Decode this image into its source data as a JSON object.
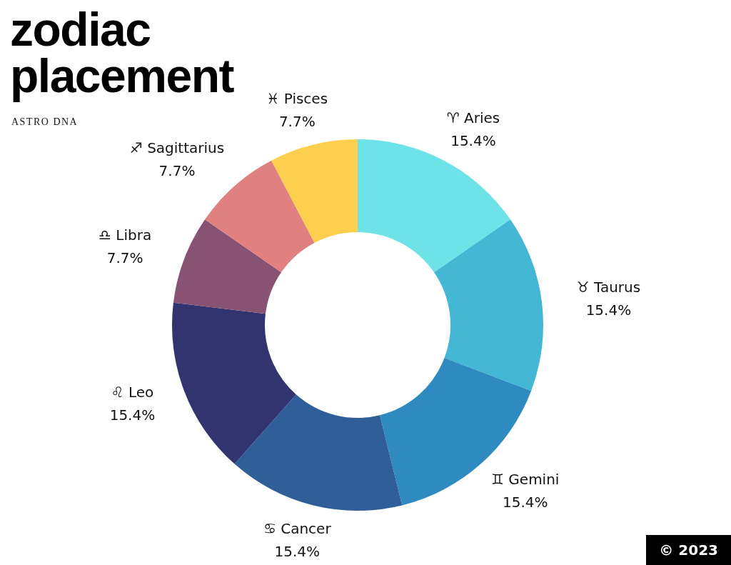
{
  "chart_data": {
    "type": "donut",
    "title": "zodiac placement",
    "subtitle": "ASTRO DNA",
    "categories": [
      "♈ Aries",
      "♉ Taurus",
      "♊ Gemini",
      "♋ Cancer",
      "♌ Leo",
      "♎ Libra",
      "♐ Sagittarius",
      "♓ Pisces"
    ],
    "values": [
      15.4,
      15.4,
      15.4,
      15.4,
      15.4,
      7.7,
      7.7,
      7.7
    ],
    "colors": [
      "#6de3e8",
      "#43b7d4",
      "#2e8abf",
      "#2f5e98",
      "#31346e",
      "#885372",
      "#e18080",
      "#fdcf4f"
    ],
    "value_labels": [
      "15.4%",
      "15.4%",
      "15.4%",
      "15.4%",
      "15.4%",
      "7.7%",
      "7.7%",
      "7.7%"
    ],
    "annotations": [
      "© 2023"
    ]
  }
}
